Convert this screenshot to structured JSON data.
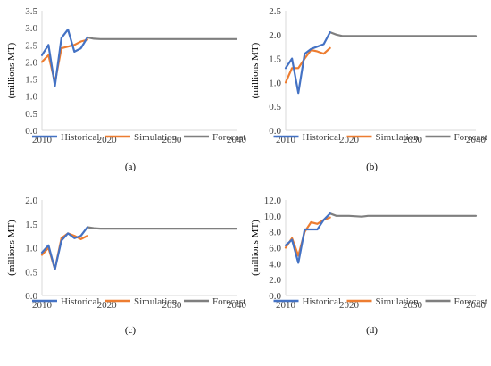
{
  "chart_data": [
    {
      "type": "line",
      "panel_label": "(a)",
      "ylabel": "(millions MT)",
      "xlim": [
        2010,
        2040
      ],
      "ylim": [
        0,
        3.5
      ],
      "xticks": [
        "2010",
        "2020",
        "2030",
        "2040"
      ],
      "yticks": [
        "0.0",
        "0.5",
        "1.0",
        "1.5",
        "2.0",
        "2.5",
        "3.0",
        "3.5"
      ],
      "grid": false,
      "legend_position": "bottom",
      "series": [
        {
          "name": "Historical",
          "color": "#4472C4",
          "x": [
            2010,
            2011,
            2012,
            2013,
            2014,
            2015,
            2016,
            2017
          ],
          "y": [
            2.2,
            2.5,
            1.3,
            2.7,
            2.95,
            2.3,
            2.4,
            2.72
          ]
        },
        {
          "name": "Simulation",
          "color": "#ED7D31",
          "x": [
            2010,
            2011,
            2012,
            2013,
            2014,
            2015,
            2016,
            2017
          ],
          "y": [
            2.0,
            2.2,
            1.4,
            2.4,
            2.45,
            2.5,
            2.6,
            2.65
          ]
        },
        {
          "name": "Forecast",
          "color": "#7F7F7F",
          "x": [
            2017,
            2018,
            2019,
            2020,
            2025,
            2030,
            2035,
            2040
          ],
          "y": [
            2.72,
            2.68,
            2.67,
            2.67,
            2.67,
            2.67,
            2.67,
            2.67
          ]
        }
      ]
    },
    {
      "type": "line",
      "panel_label": "(b)",
      "ylabel": "(millions MT)",
      "xlim": [
        2010,
        2040
      ],
      "ylim": [
        0,
        2.5
      ],
      "xticks": [
        "2010",
        "2020",
        "2030",
        "2040"
      ],
      "yticks": [
        "0.0",
        "0.5",
        "1.0",
        "1.5",
        "2.0",
        "2.5"
      ],
      "grid": false,
      "legend_position": "bottom",
      "series": [
        {
          "name": "Historical",
          "color": "#4472C4",
          "x": [
            2010,
            2011,
            2012,
            2013,
            2014,
            2015,
            2016,
            2017
          ],
          "y": [
            1.3,
            1.5,
            0.78,
            1.6,
            1.7,
            1.75,
            1.8,
            2.05
          ]
        },
        {
          "name": "Simulation",
          "color": "#ED7D31",
          "x": [
            2010,
            2011,
            2012,
            2013,
            2014,
            2015,
            2016,
            2017
          ],
          "y": [
            1.0,
            1.3,
            1.3,
            1.5,
            1.68,
            1.65,
            1.6,
            1.72
          ]
        },
        {
          "name": "Forecast",
          "color": "#7F7F7F",
          "x": [
            2017,
            2018,
            2019,
            2020,
            2025,
            2030,
            2035,
            2040
          ],
          "y": [
            2.05,
            2.0,
            1.97,
            1.97,
            1.97,
            1.97,
            1.97,
            1.97
          ]
        }
      ]
    },
    {
      "type": "line",
      "panel_label": "(c)",
      "ylabel": "(millions MT)",
      "xlim": [
        2010,
        2040
      ],
      "ylim": [
        0,
        2.0
      ],
      "xticks": [
        "2010",
        "2020",
        "2030",
        "2040"
      ],
      "yticks": [
        "0.0",
        "0.5",
        "1.0",
        "1.5",
        "2.0"
      ],
      "grid": false,
      "legend_position": "bottom",
      "series": [
        {
          "name": "Historical",
          "color": "#4472C4",
          "x": [
            2010,
            2011,
            2012,
            2013,
            2014,
            2015,
            2016,
            2017
          ],
          "y": [
            0.9,
            1.05,
            0.55,
            1.15,
            1.3,
            1.2,
            1.25,
            1.43
          ]
        },
        {
          "name": "Simulation",
          "color": "#ED7D31",
          "x": [
            2010,
            2011,
            2012,
            2013,
            2014,
            2015,
            2016,
            2017
          ],
          "y": [
            0.85,
            1.0,
            0.55,
            1.2,
            1.3,
            1.25,
            1.18,
            1.25
          ]
        },
        {
          "name": "Forecast",
          "color": "#7F7F7F",
          "x": [
            2017,
            2018,
            2019,
            2020,
            2025,
            2030,
            2035,
            2040
          ],
          "y": [
            1.43,
            1.41,
            1.4,
            1.4,
            1.4,
            1.4,
            1.4,
            1.4
          ]
        }
      ]
    },
    {
      "type": "line",
      "panel_label": "(d)",
      "ylabel": "(millions MT)",
      "xlim": [
        2010,
        2040
      ],
      "ylim": [
        0,
        12.0
      ],
      "xticks": [
        "2010",
        "2020",
        "2030",
        "2040"
      ],
      "yticks": [
        "0.0",
        "2.0",
        "4.0",
        "6.0",
        "8.0",
        "10.0",
        "12.0"
      ],
      "grid": false,
      "legend_position": "bottom",
      "series": [
        {
          "name": "Historical",
          "color": "#4472C4",
          "x": [
            2010,
            2011,
            2012,
            2013,
            2014,
            2015,
            2016,
            2017
          ],
          "y": [
            6.3,
            7.0,
            4.1,
            8.3,
            8.3,
            8.3,
            9.5,
            10.3
          ]
        },
        {
          "name": "Simulation",
          "color": "#ED7D31",
          "x": [
            2010,
            2011,
            2012,
            2013,
            2014,
            2015,
            2016,
            2017
          ],
          "y": [
            6.0,
            7.2,
            5.0,
            8.0,
            9.2,
            9.0,
            9.5,
            9.8
          ]
        },
        {
          "name": "Forecast",
          "color": "#7F7F7F",
          "x": [
            2017,
            2018,
            2019,
            2020,
            2022,
            2023,
            2025,
            2030,
            2035,
            2040
          ],
          "y": [
            10.3,
            10.0,
            10.0,
            10.0,
            9.9,
            10.0,
            10.0,
            10.0,
            10.0,
            10.0
          ]
        }
      ]
    }
  ]
}
